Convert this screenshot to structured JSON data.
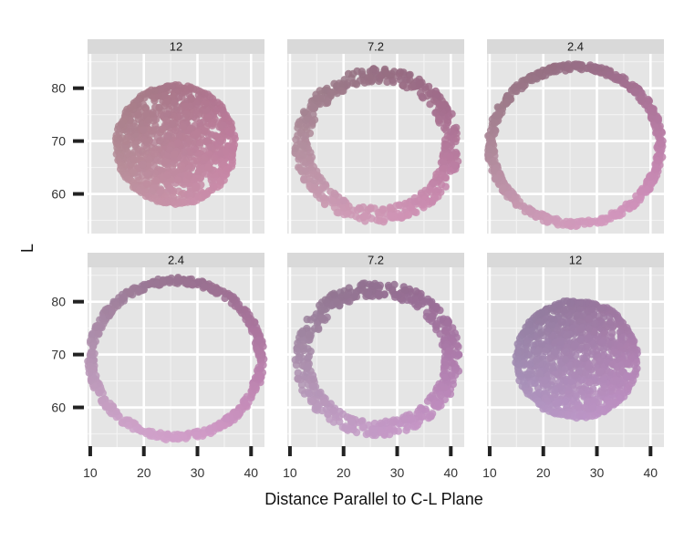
{
  "chart_data": {
    "type": "scatter",
    "description_free": true,
    "xlabel": "Distance Parallel to C-L Plane",
    "ylabel": "L",
    "xlim": [
      9.5,
      42.5
    ],
    "ylim": [
      52.5,
      86.5
    ],
    "x_ticks": [
      10,
      20,
      30,
      40
    ],
    "y_ticks": [
      60,
      70,
      80
    ],
    "grid": true,
    "facets": [
      {
        "label": "12",
        "row": 0,
        "col": 0,
        "shape": "disc",
        "center": [
          25.9,
          69.3
        ],
        "radius": [
          11,
          11.2
        ],
        "colors": {
          "top": "#d8a0b8",
          "bottom": "#9a6a7a",
          "left": "#a88a8c",
          "right": "#c77aa5"
        }
      },
      {
        "label": "7.2",
        "row": 0,
        "col": 1,
        "shape": "ring",
        "center": [
          26.3,
          69.2
        ],
        "radius": [
          13.9,
          13.2
        ],
        "band": 3.0,
        "colors": {
          "top": "#e9a8cd",
          "bottom": "#7a5a6a",
          "left": "#b39aa0",
          "right": "#b56f9a"
        }
      },
      {
        "label": "2.4",
        "row": 0,
        "col": 2,
        "shape": "ring",
        "center": [
          26.0,
          69.2
        ],
        "radius": [
          15.8,
          14.8
        ],
        "band": 1.3,
        "colors": {
          "top": "#eeb0d6",
          "bottom": "#7c5a6b",
          "left": "#a48a90",
          "right": "#c27ab0"
        }
      },
      {
        "label": "2.4",
        "row": 1,
        "col": 0,
        "shape": "ring",
        "center": [
          26.0,
          69.2
        ],
        "radius": [
          15.8,
          14.8
        ],
        "band": 1.3,
        "colors": {
          "top": "#eab0e0",
          "bottom": "#7c5a72",
          "left": "#b6a2bc",
          "right": "#b676a6"
        }
      },
      {
        "label": "7.2",
        "row": 1,
        "col": 1,
        "shape": "ring",
        "center": [
          26.3,
          69.2
        ],
        "radius": [
          13.9,
          13.2
        ],
        "band": 3.0,
        "colors": {
          "top": "#dcb2e4",
          "bottom": "#7a5e7a",
          "left": "#a692a6",
          "right": "#b070a8"
        }
      },
      {
        "label": "12",
        "row": 1,
        "col": 2,
        "shape": "disc",
        "center": [
          26.2,
          69.1
        ],
        "radius": [
          11.2,
          11.0
        ],
        "colors": {
          "top": "#d5a9de",
          "bottom": "#8c6e8e",
          "left": "#8e87a8",
          "right": "#b07aae"
        }
      }
    ]
  }
}
